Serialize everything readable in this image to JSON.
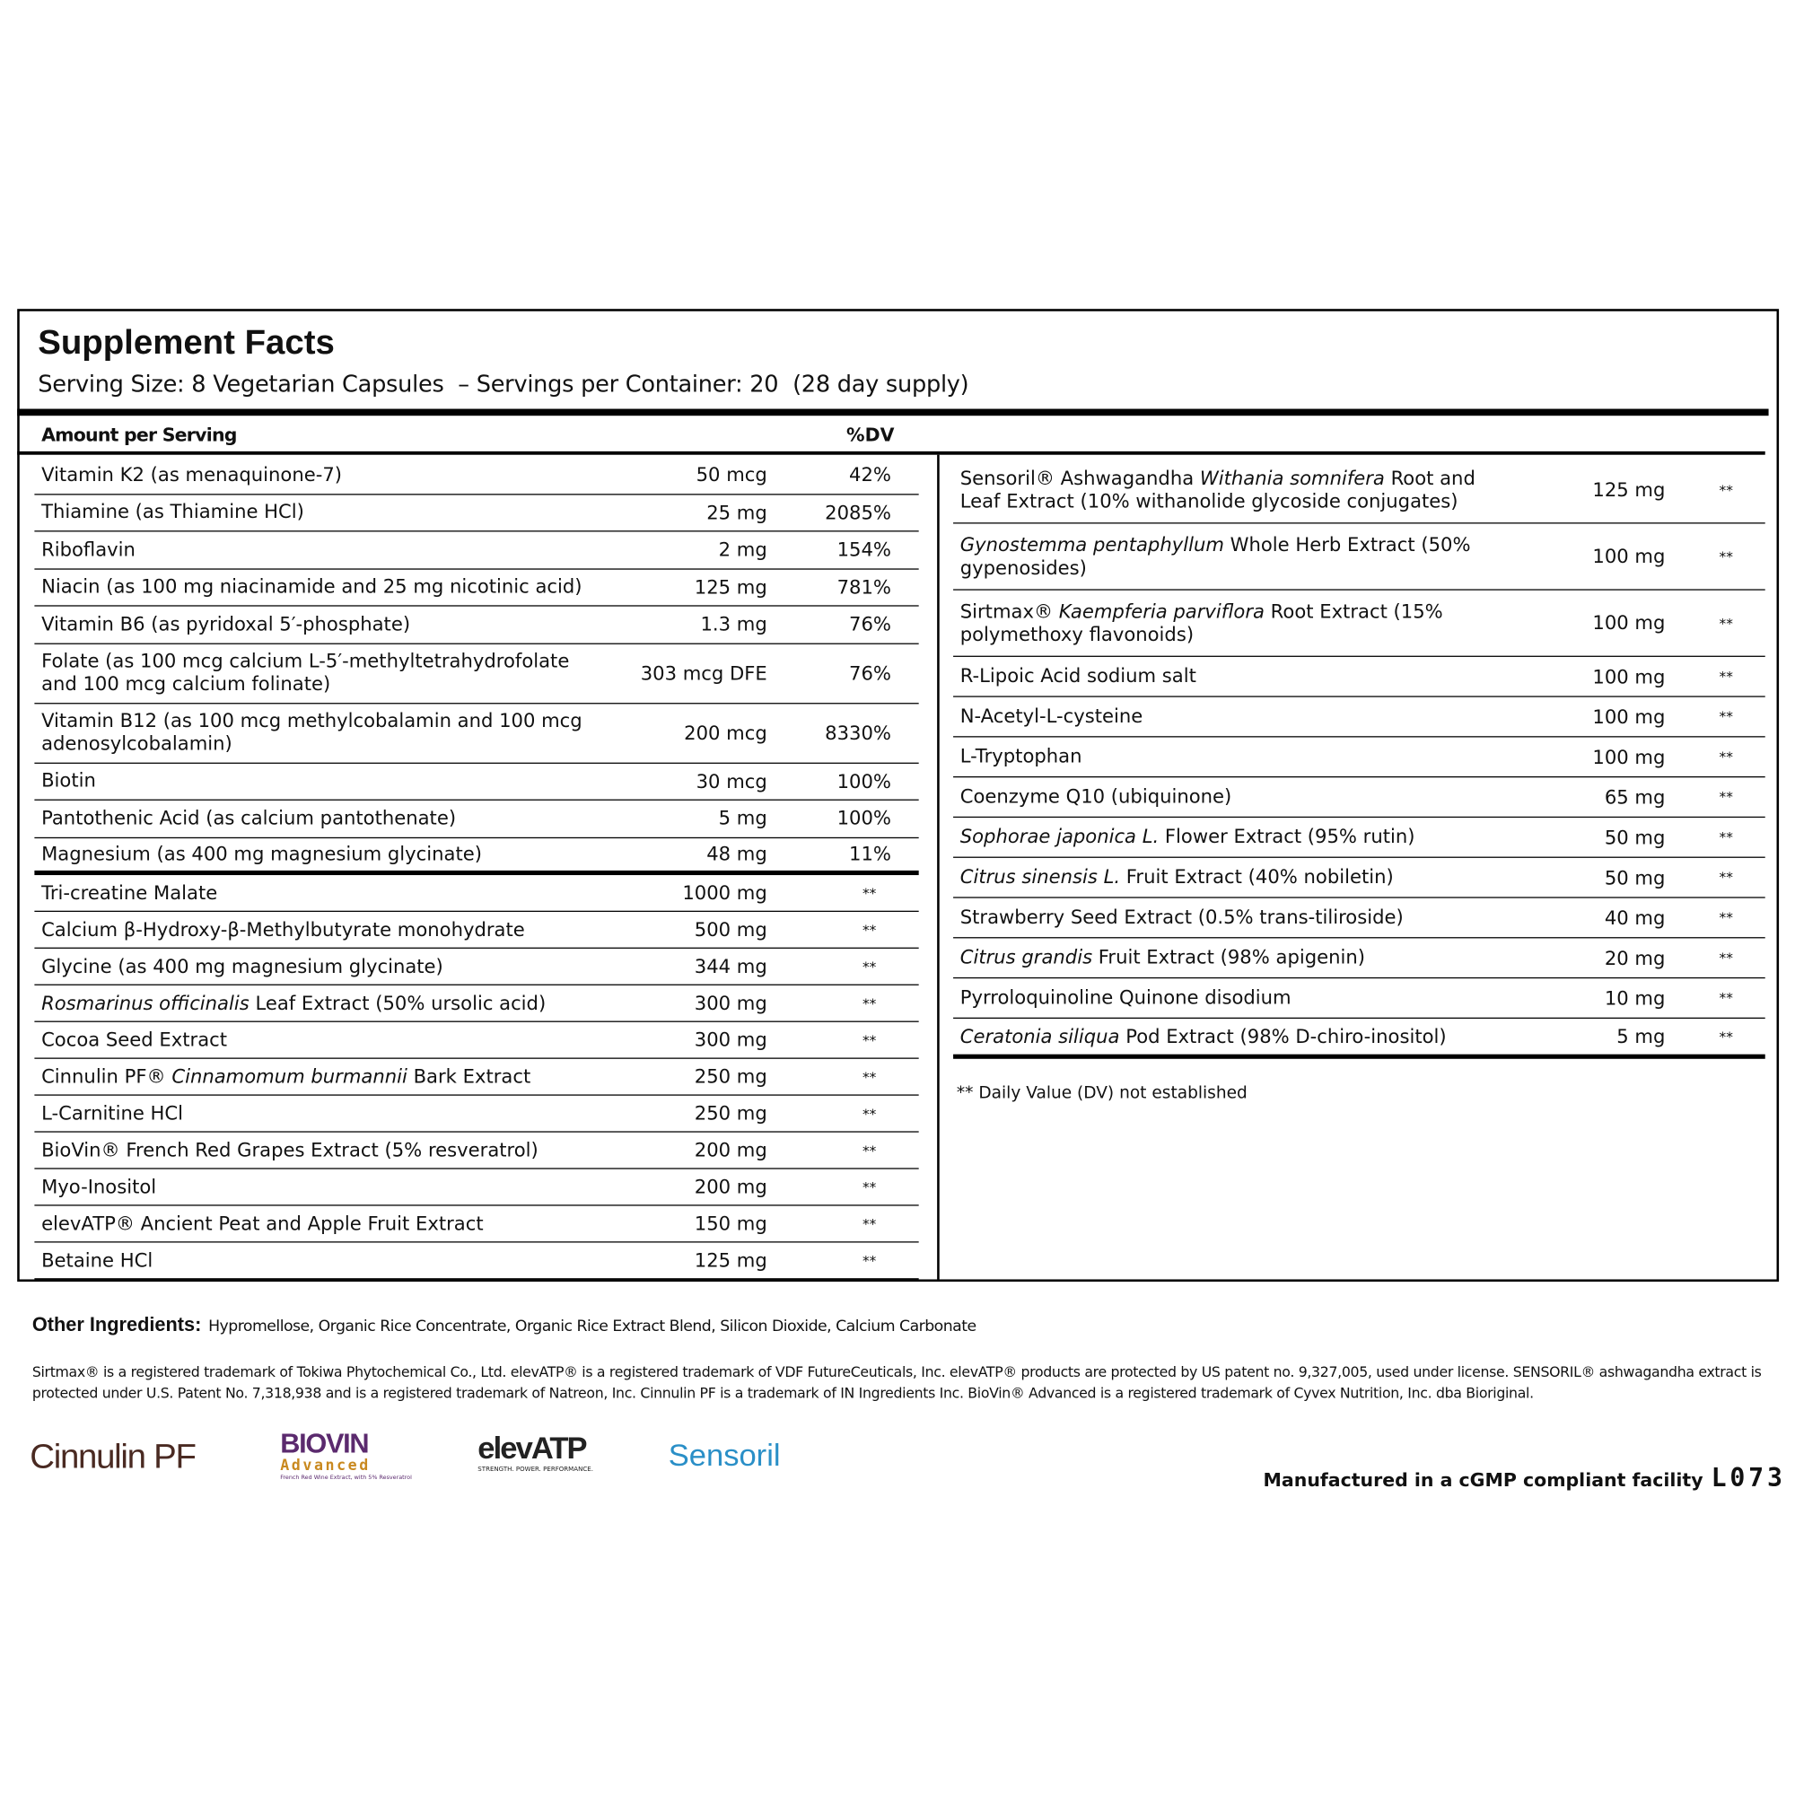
{
  "title": "Supplement Facts",
  "serving": "Serving Size: 8 Vegetarian Capsules  – Servings per Container: 20  (28 day supply)",
  "header": {
    "amount": "Amount per Serving",
    "dv": "%DV"
  },
  "left_groups": [
    [
      {
        "name": [
          "Vitamin K2 (as menaquinone-7)"
        ],
        "amount": "50 mcg",
        "dv": "42%"
      },
      {
        "name": [
          "Thiamine (as Thiamine HCl)"
        ],
        "amount": "25 mg",
        "dv": "2085%"
      },
      {
        "name": [
          "Riboflavin"
        ],
        "amount": "2 mg",
        "dv": "154%"
      },
      {
        "name": [
          "Niacin (as 100 mg niacinamide and 25 mg nicotinic acid)"
        ],
        "amount": "125 mg",
        "dv": "781%"
      },
      {
        "name": [
          "Vitamin B6 (as pyridoxal 5′-phosphate)"
        ],
        "amount": "1.3 mg",
        "dv": "76%"
      },
      {
        "name": [
          "Folate (as 100 mcg calcium L-5′-methyltetrahydrofolate and 100 mcg calcium folinate)"
        ],
        "amount": "303 mcg DFE",
        "dv": "76%"
      },
      {
        "name": [
          "Vitamin B12 (as 100 mcg methylcobalamin and 100 mcg adenosylcobalamin)"
        ],
        "amount": "200 mcg",
        "dv": "8330%"
      },
      {
        "name": [
          "Biotin"
        ],
        "amount": "30 mcg",
        "dv": "100%"
      },
      {
        "name": [
          "Pantothenic Acid (as calcium pantothenate)"
        ],
        "amount": "5 mg",
        "dv": "100%"
      },
      {
        "name": [
          "Magnesium (as 400 mg magnesium glycinate)"
        ],
        "amount": "48 mg",
        "dv": "11%"
      }
    ],
    [
      {
        "name": [
          "Tri-creatine Malate"
        ],
        "amount": "1000 mg",
        "dv": "**"
      },
      {
        "name": [
          "Calcium β-Hydroxy-β-Methylbutyrate monohydrate"
        ],
        "amount": "500 mg",
        "dv": "**"
      },
      {
        "name": [
          "Glycine (as 400 mg magnesium glycinate)"
        ],
        "amount": "344 mg",
        "dv": "**"
      },
      {
        "name": [
          {
            "italic": "Rosmarinus officinalis"
          },
          " Leaf Extract (50% ursolic acid)"
        ],
        "amount": "300 mg",
        "dv": "**"
      },
      {
        "name": [
          "Cocoa Seed Extract"
        ],
        "amount": "300 mg",
        "dv": "**"
      },
      {
        "name": [
          "Cinnulin PF® ",
          {
            "italic": "Cinnamomum burmannii"
          },
          " Bark Extract"
        ],
        "amount": "250 mg",
        "dv": "**"
      },
      {
        "name": [
          "L-Carnitine HCl"
        ],
        "amount": "250 mg",
        "dv": "**"
      },
      {
        "name": [
          "BioVin® French Red Grapes Extract (5% resveratrol)"
        ],
        "amount": "200 mg",
        "dv": "**"
      },
      {
        "name": [
          "Myo-Inositol"
        ],
        "amount": "200 mg",
        "dv": "**"
      },
      {
        "name": [
          "elevATP® Ancient Peat and Apple Fruit Extract"
        ],
        "amount": "150 mg",
        "dv": "**"
      },
      {
        "name": [
          "Betaine HCl"
        ],
        "amount": "125 mg",
        "dv": "**"
      }
    ]
  ],
  "right_rows": [
    {
      "name": [
        "Sensoril® Ashwagandha ",
        {
          "italic": "Withania somnifera"
        },
        "  Root and Leaf Extract  (10% withanolide glycoside conjugates)"
      ],
      "amount": "125 mg",
      "dv": "**"
    },
    {
      "name": [
        {
          "italic": "Gynostemma pentaphyllum"
        },
        " Whole Herb Extract (50% gypenosides)"
      ],
      "amount": "100 mg",
      "dv": "**"
    },
    {
      "name": [
        "Sirtmax® ",
        {
          "italic": "Kaempferia parviflora"
        },
        " Root Extract (15% polymethoxy flavonoids)"
      ],
      "amount": "100 mg",
      "dv": "**"
    },
    {
      "name": [
        "R-Lipoic Acid sodium salt"
      ],
      "amount": "100 mg",
      "dv": "**"
    },
    {
      "name": [
        "N-Acetyl-L-cysteine"
      ],
      "amount": "100 mg",
      "dv": "**"
    },
    {
      "name": [
        "L-Tryptophan"
      ],
      "amount": "100 mg",
      "dv": "**"
    },
    {
      "name": [
        "Coenzyme Q10 (ubiquinone)"
      ],
      "amount": "65 mg",
      "dv": "**"
    },
    {
      "name": [
        {
          "italic": "Sophorae japonica L."
        },
        " Flower Extract (95% rutin)"
      ],
      "amount": "50 mg",
      "dv": "**"
    },
    {
      "name": [
        {
          "italic": "Citrus sinensis L."
        },
        " Fruit Extract (40% nobiletin)"
      ],
      "amount": "50 mg",
      "dv": "**"
    },
    {
      "name": [
        "Strawberry Seed Extract (0.5% trans-tiliroside)"
      ],
      "amount": "40 mg",
      "dv": "**"
    },
    {
      "name": [
        {
          "italic": "Citrus grandis"
        },
        " Fruit Extract (98% apigenin)"
      ],
      "amount": "20 mg",
      "dv": "**"
    },
    {
      "name": [
        "Pyrroloquinoline Quinone disodium"
      ],
      "amount": "10 mg",
      "dv": "**"
    },
    {
      "name": [
        {
          "italic": "Ceratonia siliqua"
        },
        " Pod Extract (98% D-chiro-inositol)"
      ],
      "amount": "5 mg",
      "dv": "**"
    }
  ],
  "footnote": "** Daily Value (DV) not established",
  "other_label": "Other Ingredients:",
  "other_text": "Hypromellose, Organic Rice Concentrate, Organic Rice Extract Blend, Silicon Dioxide, Calcium Carbonate",
  "trademarks": "Sirtmax® is a registered trademark of Tokiwa Phytochemical Co., Ltd. elevATP® is a registered trademark of VDF FutureCeuticals, Inc. elevATP® products are protected by US patent no. 9,327,005, used under license. SENSORIL® ashwagandha extract is protected under U.S. Patent No. 7,318,938 and is a registered trademark of Natreon, Inc. Cinnulin PF is a trademark of IN Ingredients Inc.  BioVin® Advanced is a registered trademark of Cyvex Nutrition, Inc. dba Bioriginal.",
  "logos": {
    "cinnulin": "Cinnulin PF",
    "biovin": "BIOVIN",
    "biovin_sub": "Advanced",
    "biovin_caption": "French Red Wine Extract, with 5% Resveratrol",
    "elevatp": "elevATP",
    "elevatp_caption": "STRENGTH. POWER. PERFORMANCE.",
    "sensoril": "Sensoril"
  },
  "manufactured": "Manufactured in a cGMP compliant facility",
  "lot": "L073"
}
